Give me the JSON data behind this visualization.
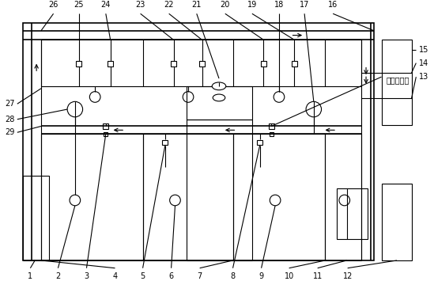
{
  "bg_color": "#ffffff",
  "lc": "#000000",
  "lw": 0.8,
  "tlw": 1.2,
  "fig_width": 5.49,
  "fig_height": 3.55,
  "dpi": 100,
  "label_text": "承压零部件",
  "fs": 7.0
}
